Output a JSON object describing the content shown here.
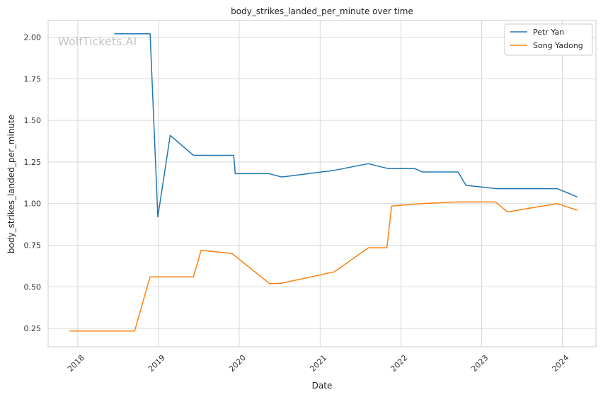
{
  "watermark": "WolfTickets.AI",
  "chart_data": {
    "type": "line",
    "title": "body_strikes_landed_per_minute over time",
    "xlabel": "Date",
    "ylabel": "body_strikes_landed_per_minute",
    "x_ticks": [
      "2018",
      "2019",
      "2020",
      "2021",
      "2022",
      "2023",
      "2024"
    ],
    "y_ticks": [
      "0.25",
      "0.50",
      "0.75",
      "1.00",
      "1.25",
      "1.50",
      "1.75",
      "2.00"
    ],
    "xlim": [
      "2017-08-20",
      "2024-06-01"
    ],
    "ylim": [
      0.14,
      2.1
    ],
    "grid": true,
    "legend_position": "top-right",
    "series": [
      {
        "name": "Petr Yan",
        "color": "#1f77b4",
        "points": [
          [
            "2018-06-16",
            2.02
          ],
          [
            "2018-11-24",
            2.02
          ],
          [
            "2018-12-29",
            0.92
          ],
          [
            "2019-02-23",
            1.41
          ],
          [
            "2019-06-08",
            1.29
          ],
          [
            "2019-12-07",
            1.29
          ],
          [
            "2019-12-14",
            1.18
          ],
          [
            "2020-05-15",
            1.18
          ],
          [
            "2020-07-12",
            1.16
          ],
          [
            "2021-03-06",
            1.2
          ],
          [
            "2021-08-07",
            1.24
          ],
          [
            "2021-11-06",
            1.21
          ],
          [
            "2022-03-05",
            1.21
          ],
          [
            "2022-04-09",
            1.19
          ],
          [
            "2022-09-17",
            1.19
          ],
          [
            "2022-10-22",
            1.11
          ],
          [
            "2023-03-11",
            1.09
          ],
          [
            "2023-12-09",
            1.09
          ],
          [
            "2024-03-09",
            1.04
          ]
        ]
      },
      {
        "name": "Song Yadong",
        "color": "#ff7f0e",
        "points": [
          [
            "2017-11-25",
            0.235
          ],
          [
            "2018-09-15",
            0.235
          ],
          [
            "2018-11-24",
            0.56
          ],
          [
            "2019-06-08",
            0.56
          ],
          [
            "2019-07-13",
            0.72
          ],
          [
            "2019-11-30",
            0.7
          ],
          [
            "2020-05-16",
            0.52
          ],
          [
            "2020-07-04",
            0.52
          ],
          [
            "2021-03-06",
            0.59
          ],
          [
            "2021-08-07",
            0.735
          ],
          [
            "2021-10-30",
            0.735
          ],
          [
            "2021-11-20",
            0.985
          ],
          [
            "2022-04-01",
            1.0
          ],
          [
            "2022-09-17",
            1.01
          ],
          [
            "2023-03-04",
            1.01
          ],
          [
            "2023-04-29",
            0.95
          ],
          [
            "2023-12-09",
            1.0
          ],
          [
            "2024-03-09",
            0.96
          ]
        ]
      }
    ]
  }
}
